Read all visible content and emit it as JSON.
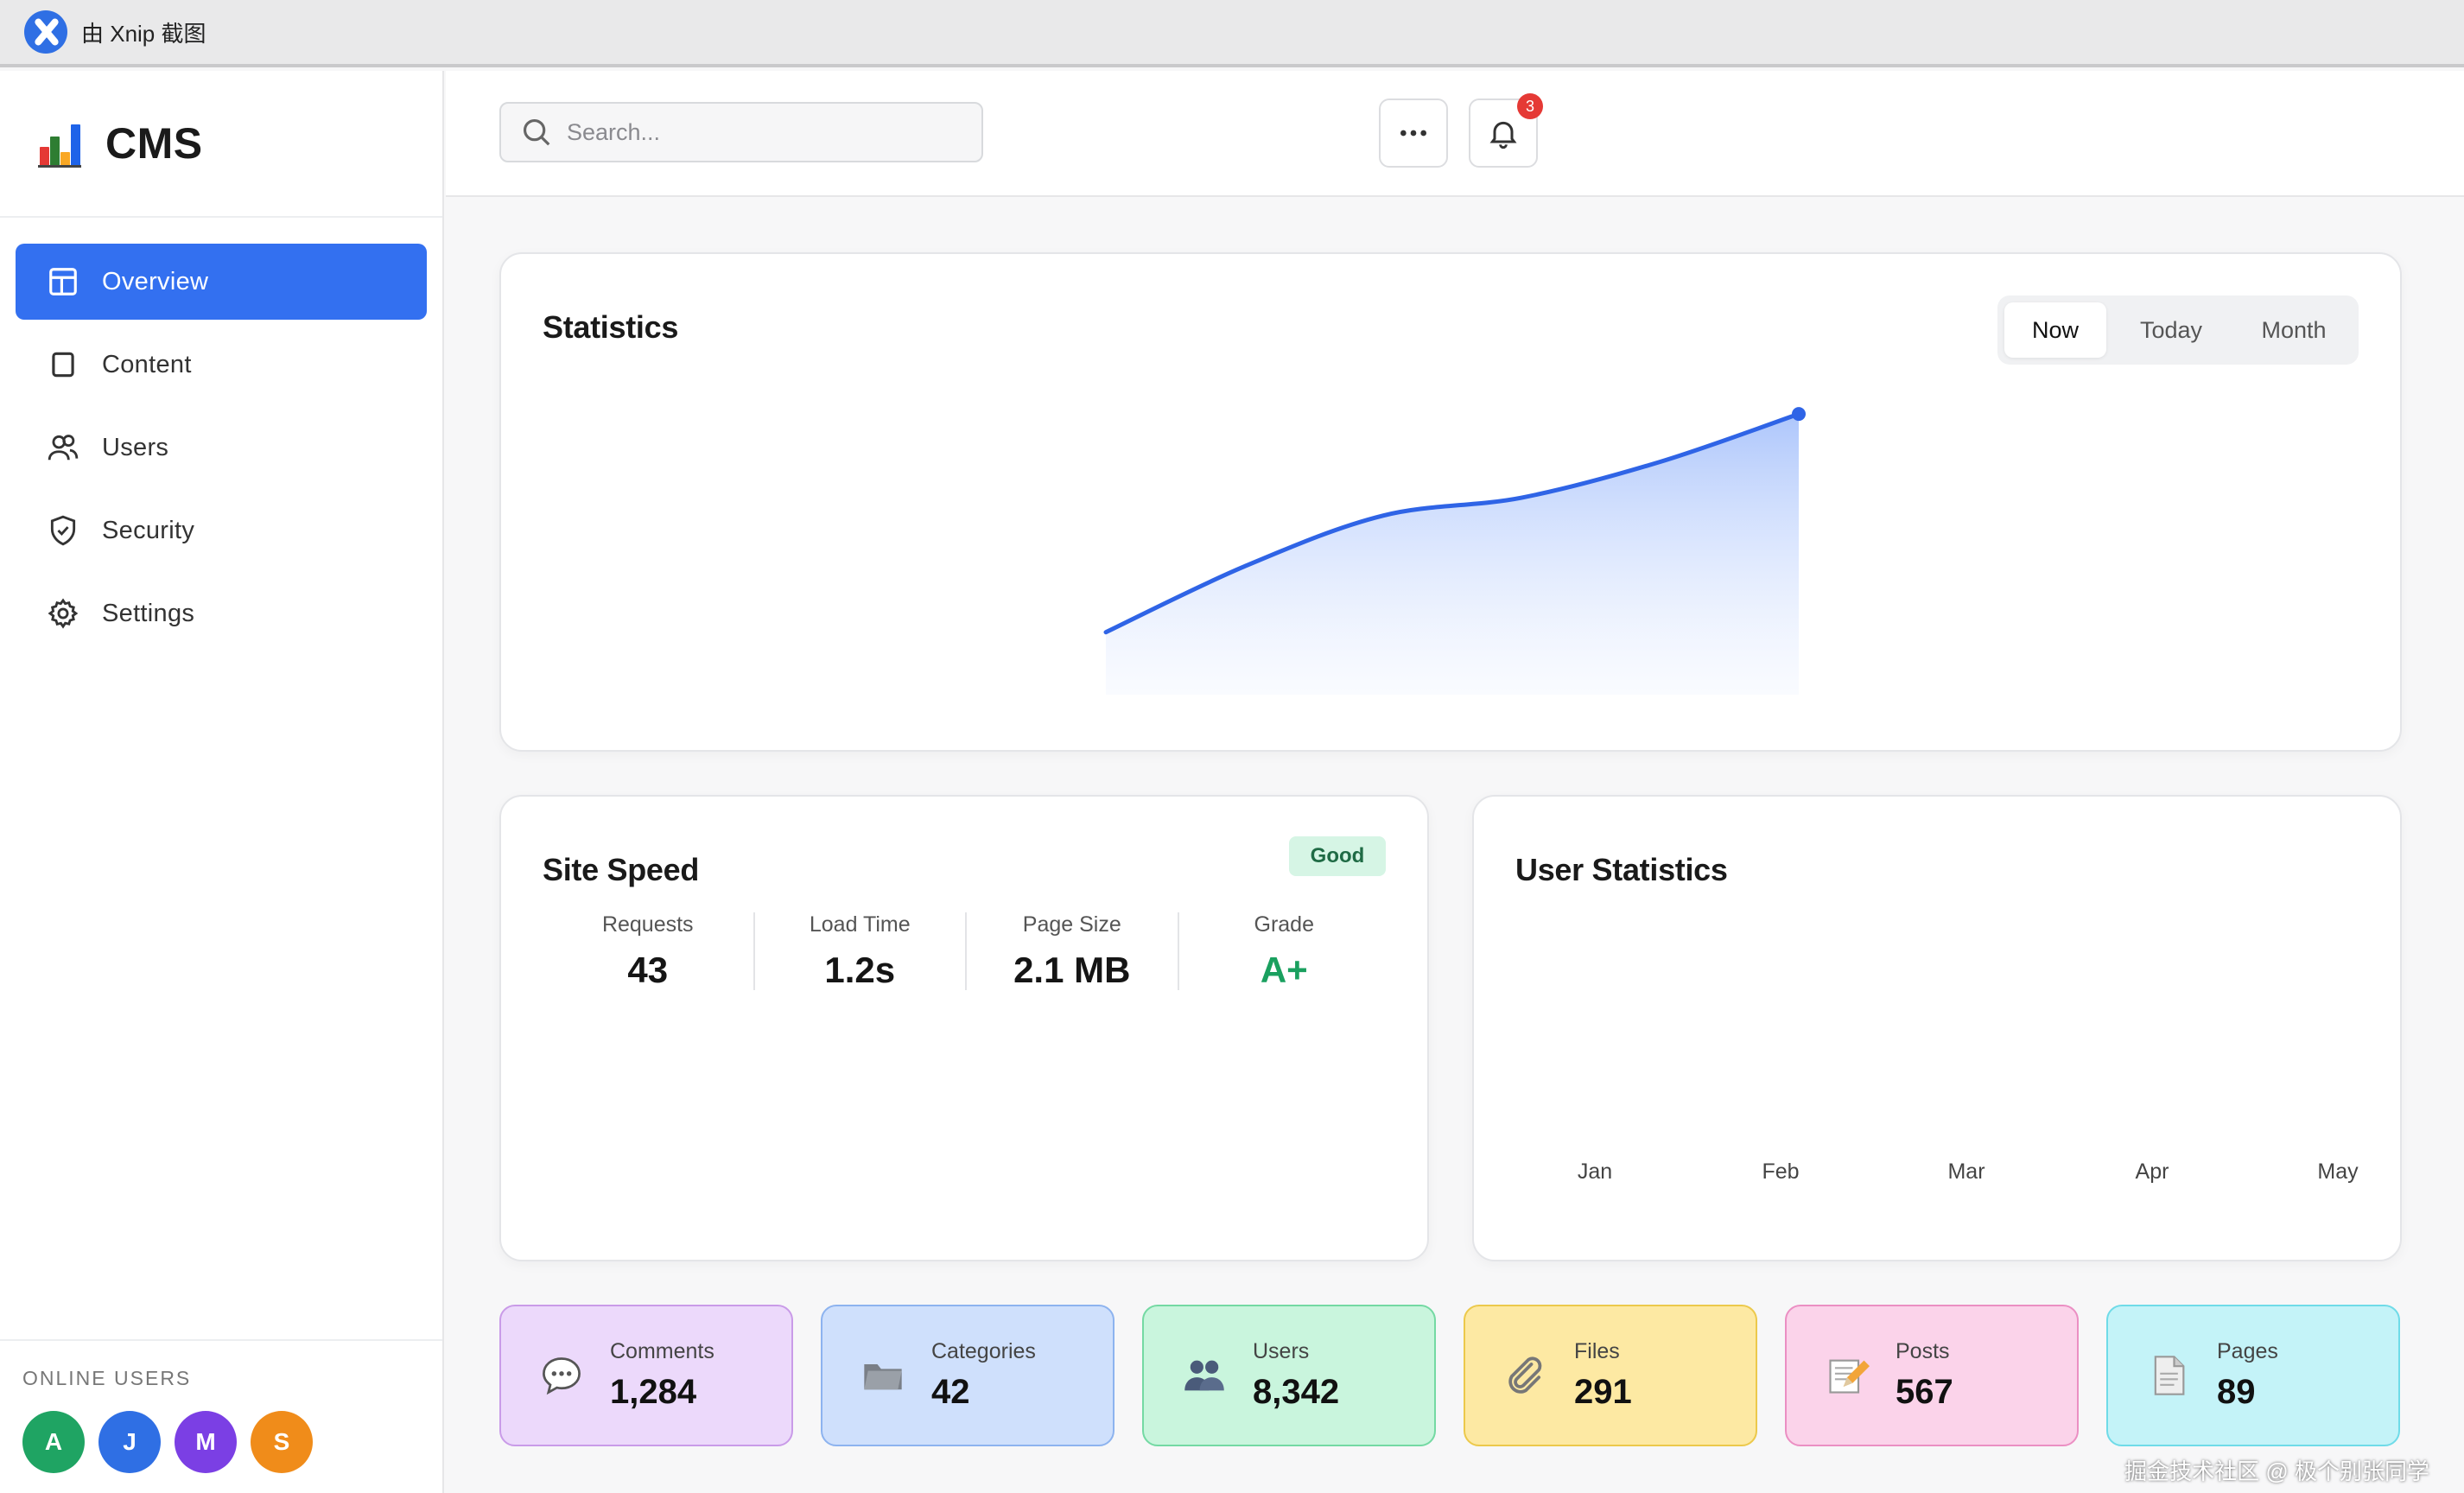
{
  "os_bar": {
    "title": "由 Xnip 截图"
  },
  "brand": {
    "name": "CMS"
  },
  "sidebar": {
    "items": [
      {
        "label": "Overview",
        "icon": "layout-icon",
        "active": true
      },
      {
        "label": "Content",
        "icon": "square-icon"
      },
      {
        "label": "Users",
        "icon": "users-icon"
      },
      {
        "label": "Security",
        "icon": "shield-check-icon"
      },
      {
        "label": "Settings",
        "icon": "gear-icon"
      }
    ],
    "online_title": "ONLINE USERS",
    "online_users": [
      {
        "initial": "A",
        "color": "#1fa463"
      },
      {
        "initial": "J",
        "color": "#2f6fe4"
      },
      {
        "initial": "M",
        "color": "#7b3fe4"
      },
      {
        "initial": "S",
        "color": "#f08c1a"
      }
    ]
  },
  "header": {
    "search_placeholder": "Search...",
    "notification_count": "3"
  },
  "statistics": {
    "title": "Statistics",
    "tabs": [
      "Now",
      "Today",
      "Month"
    ],
    "active_tab": "Now"
  },
  "site_speed": {
    "title": "Site Speed",
    "status": "Good",
    "metrics": [
      {
        "label": "Requests",
        "value": "43"
      },
      {
        "label": "Load Time",
        "value": "1.2s"
      },
      {
        "label": "Page Size",
        "value": "2.1 MB"
      },
      {
        "label": "Grade",
        "value": "A+"
      }
    ]
  },
  "user_statistics": {
    "title": "User Statistics",
    "months": [
      "Jan",
      "Feb",
      "Mar",
      "Apr",
      "May"
    ]
  },
  "tiles": [
    {
      "label": "Comments",
      "value": "1,284",
      "icon": "speech-bubble-icon",
      "bg": "#ecd9fb",
      "border": "#c99be8"
    },
    {
      "label": "Categories",
      "value": "42",
      "icon": "folder-icon",
      "bg": "#cfe0fc",
      "border": "#8db3ef"
    },
    {
      "label": "Users",
      "value": "8,342",
      "icon": "people-icon",
      "bg": "#c9f5dd",
      "border": "#74d9a3"
    },
    {
      "label": "Files",
      "value": "291",
      "icon": "paperclip-icon",
      "bg": "#fde9a3",
      "border": "#ecc94b"
    },
    {
      "label": "Posts",
      "value": "567",
      "icon": "memo-icon",
      "bg": "#fbd3ea",
      "border": "#eb8fc3"
    },
    {
      "label": "Pages",
      "value": "89",
      "icon": "page-icon",
      "bg": "#c4f3f8",
      "border": "#6fdbe8"
    }
  ],
  "watermark": "掘金技术社区 @ 极个别张同学",
  "chart_data": {
    "type": "area",
    "x": [
      0,
      1,
      2,
      3,
      4,
      5
    ],
    "values": [
      18,
      40,
      57,
      63,
      75,
      91
    ],
    "ylim": [
      0,
      100
    ],
    "title": "Statistics"
  }
}
